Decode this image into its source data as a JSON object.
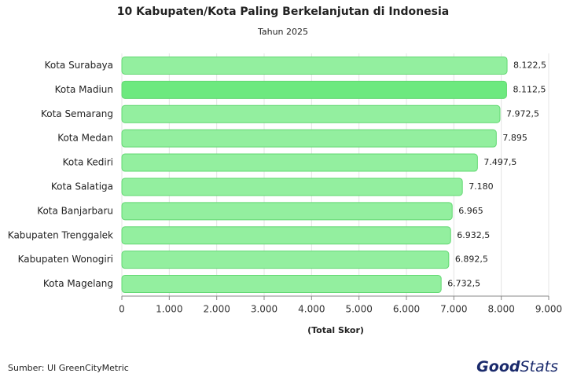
{
  "chart_data": {
    "type": "barh",
    "title": "10 Kabupaten/Kota Paling Berkelanjutan di Indonesia",
    "subtitle": "Tahun 2025",
    "x_label": "(Total Skor)",
    "categories": [
      "Kota Surabaya",
      "Kota Madiun",
      "Kota Semarang",
      "Kota Medan",
      "Kota Kediri",
      "Kota Salatiga",
      "Kota Banjarbaru",
      "Kabupaten Trenggalek",
      "Kabupaten Wonogiri",
      "Kota Magelang"
    ],
    "values": [
      8122.5,
      8112.5,
      7972.5,
      7895,
      7497.5,
      7180,
      6965,
      6932.5,
      6892.5,
      6732.5
    ],
    "value_labels": [
      "8.122,5",
      "8.112,5",
      "7.972,5",
      "7.895",
      "7.497,5",
      "7.180",
      "6.965",
      "6.932,5",
      "6.892,5",
      "6.732,5"
    ],
    "colors": [
      "#93ef9f",
      "#6de97f",
      "#93ef9f",
      "#93ef9f",
      "#93ef9f",
      "#93ef9f",
      "#93ef9f",
      "#93ef9f",
      "#93ef9f",
      "#93ef9f"
    ],
    "xlim": [
      0,
      9000
    ],
    "xticks": [
      0,
      {
        "value": 1000,
        "label": "1.000"
      },
      {
        "value": 2000,
        "label": "2.000"
      },
      {
        "value": 3000,
        "label": "3.000"
      },
      {
        "value": 4000,
        "label": "4.000"
      },
      {
        "value": 5000,
        "label": "5.000"
      },
      {
        "value": 6000,
        "label": "6.000"
      },
      {
        "value": 7000,
        "label": "7.000"
      },
      {
        "value": 8000,
        "label": "8.000"
      },
      {
        "value": 9000,
        "label": "9.000"
      }
    ],
    "grid": true,
    "source": "Sumber: UI GreenCityMetric",
    "logo": [
      "Good",
      "Stats"
    ]
  }
}
